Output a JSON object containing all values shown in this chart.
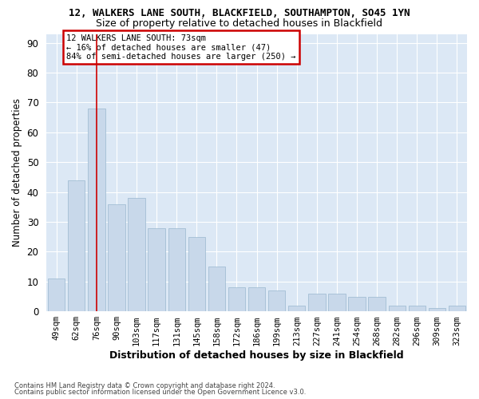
{
  "title": "12, WALKERS LANE SOUTH, BLACKFIELD, SOUTHAMPTON, SO45 1YN",
  "subtitle": "Size of property relative to detached houses in Blackfield",
  "xlabel": "Distribution of detached houses by size in Blackfield",
  "ylabel": "Number of detached properties",
  "bar_color": "#c8d8ea",
  "bar_edgecolor": "#9ab8cf",
  "categories": [
    "49sqm",
    "62sqm",
    "76sqm",
    "90sqm",
    "103sqm",
    "117sqm",
    "131sqm",
    "145sqm",
    "158sqm",
    "172sqm",
    "186sqm",
    "199sqm",
    "213sqm",
    "227sqm",
    "241sqm",
    "254sqm",
    "268sqm",
    "282sqm",
    "296sqm",
    "309sqm",
    "323sqm"
  ],
  "values": [
    11,
    44,
    68,
    36,
    38,
    28,
    28,
    25,
    15,
    8,
    8,
    7,
    2,
    6,
    6,
    5,
    5,
    2,
    2,
    1,
    2
  ],
  "marker_idx": 2,
  "marker_color": "#cc0000",
  "annotation_line1": "12 WALKERS LANE SOUTH: 73sqm",
  "annotation_line2": "← 16% of detached houses are smaller (47)",
  "annotation_line3": "84% of semi-detached houses are larger (250) →",
  "annotation_box_edgecolor": "#cc0000",
  "ylim": [
    0,
    93
  ],
  "yticks": [
    0,
    10,
    20,
    30,
    40,
    50,
    60,
    70,
    80,
    90
  ],
  "plot_bg": "#dce8f5",
  "grid_color": "#ffffff",
  "footer1": "Contains HM Land Registry data © Crown copyright and database right 2024.",
  "footer2": "Contains public sector information licensed under the Open Government Licence v3.0."
}
